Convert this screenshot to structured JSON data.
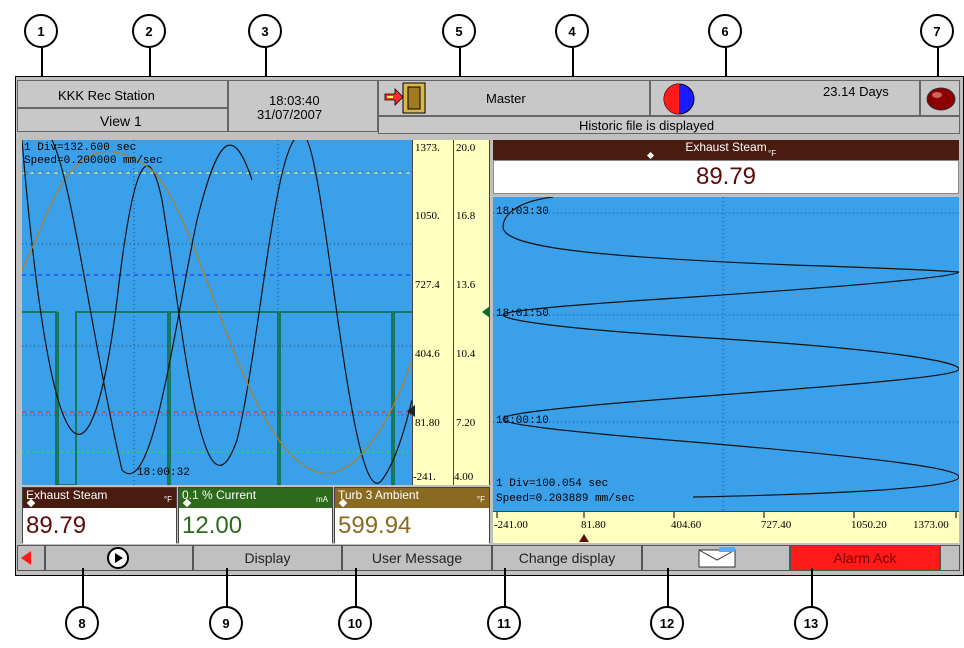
{
  "callouts": [
    "1",
    "2",
    "3",
    "4",
    "5",
    "6",
    "7",
    "8",
    "9",
    "10",
    "11",
    "12",
    "13"
  ],
  "header": {
    "station": "KKK Rec Station",
    "view": "View 1",
    "time": "18:03:40",
    "date": "31/07/2007",
    "mode": "Master",
    "status": "Historic file is displayed",
    "days": "23.14 Days"
  },
  "left_chart": {
    "div_text": "1 Div=132.600 sec",
    "speed_text": "Speed=0.200000 mm/sec",
    "time_label": "18:00:32",
    "scale1": [
      "1373.",
      "1050.",
      "727.4",
      "404.6",
      "81.80",
      "-241."
    ],
    "scale2": [
      "20.0",
      "16.8",
      "13.6",
      "10.4",
      "7.20",
      "4.00"
    ]
  },
  "right_chart": {
    "title": "Exhaust Steam",
    "unit": "°F",
    "value": "89.79",
    "time_labels": [
      "18:03:30",
      "18:01:50",
      "18:00:10"
    ],
    "div_text": "1 Div=100.054 sec",
    "speed_text": "Speed=0.203889 mm/sec",
    "scale": [
      "-241.00",
      "81.80",
      "404.60",
      "727.40",
      "1050.20",
      "1373.00"
    ]
  },
  "panels": [
    {
      "name": "Exhaust Steam",
      "unit": "°F",
      "value": "89.79",
      "color": "#4a1c10",
      "text_color": "#5a0c0c"
    },
    {
      "name": "0.1 % Current",
      "unit": "mA",
      "value": "12.00",
      "color": "#2e6a1c",
      "text_color": "#2e6a1c"
    },
    {
      "name": "Turb 3 Ambient",
      "unit": "°F",
      "value": "599.94",
      "color": "#8a6a20",
      "text_color": "#8a6a20"
    }
  ],
  "toolbar": {
    "display": "Display",
    "user_message": "User Message",
    "change_display": "Change display",
    "alarm_ack": "Alarm Ack"
  },
  "colors": {
    "chart_bg": "#3aa0ea",
    "scale_bg": "#ffffc0",
    "alarm": "#ff1a1a"
  },
  "icons": [
    "exit-door-icon",
    "pie-status-icon",
    "alarm-light-icon",
    "left-arrow-icon",
    "play-icon",
    "email-icon"
  ]
}
